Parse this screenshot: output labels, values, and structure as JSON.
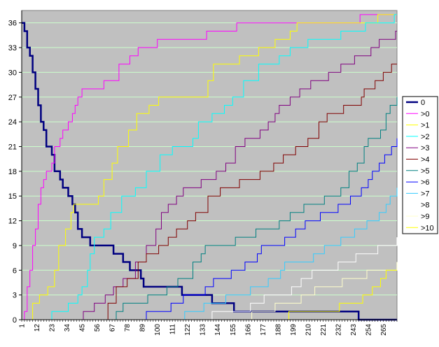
{
  "chart_data": {
    "type": "line",
    "title": "",
    "xlabel": "",
    "ylabel": "",
    "xlim": [
      1,
      275
    ],
    "ylim": [
      0,
      37.5
    ],
    "y_ticks": [
      0,
      3,
      6,
      9,
      12,
      15,
      18,
      21,
      24,
      27,
      30,
      33,
      36
    ],
    "x_ticks": [
      1,
      12,
      23,
      34,
      45,
      56,
      67,
      78,
      89,
      100,
      111,
      122,
      133,
      144,
      155,
      166,
      177,
      188,
      199,
      210,
      221,
      232,
      243,
      254,
      265
    ],
    "grid": true,
    "legend_position": "right",
    "plot_background": "#c0c0c0",
    "gridline_color": "#ccffcc",
    "series": [
      {
        "name": "0",
        "color": "#000080",
        "width": 2.5,
        "points": [
          [
            1,
            36
          ],
          [
            3,
            35
          ],
          [
            5,
            33
          ],
          [
            7,
            32
          ],
          [
            9,
            30
          ],
          [
            11,
            28
          ],
          [
            13,
            26
          ],
          [
            15,
            24
          ],
          [
            17,
            23
          ],
          [
            19,
            21
          ],
          [
            23,
            20
          ],
          [
            25,
            18
          ],
          [
            29,
            17
          ],
          [
            31,
            16
          ],
          [
            35,
            15
          ],
          [
            38,
            14
          ],
          [
            40,
            13
          ],
          [
            42,
            11
          ],
          [
            45,
            10
          ],
          [
            51,
            9
          ],
          [
            68,
            8
          ],
          [
            75,
            7
          ],
          [
            80,
            6
          ],
          [
            88,
            5
          ],
          [
            90,
            4
          ],
          [
            118,
            3
          ],
          [
            140,
            2
          ],
          [
            156,
            1
          ],
          [
            247,
            0
          ],
          [
            275,
            0
          ]
        ]
      },
      {
        "name": ">0",
        "color": "#ff00ff",
        "width": 1,
        "points": [
          [
            1,
            0
          ],
          [
            3,
            1
          ],
          [
            5,
            4
          ],
          [
            7,
            6
          ],
          [
            9,
            9
          ],
          [
            11,
            11
          ],
          [
            13,
            14
          ],
          [
            15,
            16
          ],
          [
            17,
            17
          ],
          [
            19,
            18
          ],
          [
            23,
            19
          ],
          [
            25,
            21
          ],
          [
            29,
            22
          ],
          [
            31,
            23
          ],
          [
            35,
            24
          ],
          [
            38,
            25
          ],
          [
            40,
            26
          ],
          [
            42,
            27
          ],
          [
            45,
            28
          ],
          [
            61,
            29
          ],
          [
            72,
            31
          ],
          [
            80,
            32
          ],
          [
            86,
            33
          ],
          [
            100,
            34
          ],
          [
            136,
            35
          ],
          [
            158,
            36
          ],
          [
            248,
            37
          ],
          [
            275,
            37
          ]
        ]
      },
      {
        "name": ">1",
        "color": "#ffff00",
        "width": 1,
        "points": [
          [
            1,
            0
          ],
          [
            9,
            2
          ],
          [
            14,
            3
          ],
          [
            20,
            4
          ],
          [
            25,
            6
          ],
          [
            28,
            9
          ],
          [
            33,
            11
          ],
          [
            37,
            13
          ],
          [
            39,
            14
          ],
          [
            57,
            15
          ],
          [
            61,
            17
          ],
          [
            67,
            19
          ],
          [
            71,
            21
          ],
          [
            79,
            23
          ],
          [
            85,
            25
          ],
          [
            94,
            26
          ],
          [
            101,
            27
          ],
          [
            137,
            29
          ],
          [
            141,
            31
          ],
          [
            160,
            32
          ],
          [
            174,
            33
          ],
          [
            186,
            34
          ],
          [
            197,
            35
          ],
          [
            202,
            36
          ],
          [
            261,
            37
          ],
          [
            275,
            37
          ]
        ]
      },
      {
        "name": ">2",
        "color": "#00ffff",
        "width": 1,
        "points": [
          [
            1,
            0
          ],
          [
            23,
            1
          ],
          [
            35,
            2
          ],
          [
            42,
            3
          ],
          [
            45,
            4
          ],
          [
            49,
            6
          ],
          [
            51,
            8
          ],
          [
            54,
            10
          ],
          [
            61,
            11
          ],
          [
            66,
            13
          ],
          [
            74,
            15
          ],
          [
            84,
            16
          ],
          [
            92,
            18
          ],
          [
            102,
            20
          ],
          [
            111,
            21
          ],
          [
            126,
            22
          ],
          [
            130,
            24
          ],
          [
            140,
            25
          ],
          [
            149,
            26
          ],
          [
            155,
            27
          ],
          [
            163,
            29
          ],
          [
            174,
            31
          ],
          [
            189,
            32
          ],
          [
            197,
            33
          ],
          [
            210,
            34
          ],
          [
            234,
            35
          ],
          [
            252,
            36
          ],
          [
            273,
            37
          ],
          [
            275,
            37
          ]
        ]
      },
      {
        "name": ">3",
        "color": "#800080",
        "width": 1,
        "points": [
          [
            1,
            0
          ],
          [
            46,
            1
          ],
          [
            54,
            2
          ],
          [
            62,
            3
          ],
          [
            68,
            4
          ],
          [
            75,
            5
          ],
          [
            84,
            7
          ],
          [
            92,
            9
          ],
          [
            99,
            11
          ],
          [
            103,
            13
          ],
          [
            108,
            14
          ],
          [
            114,
            15
          ],
          [
            119,
            16
          ],
          [
            132,
            17
          ],
          [
            143,
            18
          ],
          [
            150,
            19
          ],
          [
            157,
            21
          ],
          [
            164,
            22
          ],
          [
            175,
            23
          ],
          [
            181,
            24
          ],
          [
            186,
            25
          ],
          [
            189,
            26
          ],
          [
            197,
            27
          ],
          [
            204,
            28
          ],
          [
            212,
            29
          ],
          [
            225,
            30
          ],
          [
            234,
            31
          ],
          [
            244,
            32
          ],
          [
            256,
            33
          ],
          [
            262,
            34
          ],
          [
            274,
            35
          ],
          [
            275,
            35
          ]
        ]
      },
      {
        "name": ">4",
        "color": "#800000",
        "width": 1,
        "points": [
          [
            1,
            0
          ],
          [
            64,
            2
          ],
          [
            70,
            4
          ],
          [
            78,
            5
          ],
          [
            86,
            7
          ],
          [
            92,
            8
          ],
          [
            101,
            9
          ],
          [
            108,
            10
          ],
          [
            114,
            11
          ],
          [
            122,
            12
          ],
          [
            128,
            13
          ],
          [
            137,
            15
          ],
          [
            146,
            16
          ],
          [
            160,
            17
          ],
          [
            175,
            18
          ],
          [
            185,
            19
          ],
          [
            192,
            20
          ],
          [
            201,
            21
          ],
          [
            210,
            22
          ],
          [
            218,
            24
          ],
          [
            224,
            25
          ],
          [
            236,
            26
          ],
          [
            249,
            27
          ],
          [
            251,
            28
          ],
          [
            259,
            29
          ],
          [
            265,
            30
          ],
          [
            271,
            31
          ],
          [
            275,
            31
          ]
        ]
      },
      {
        "name": ">5",
        "color": "#008080",
        "width": 1,
        "points": [
          [
            1,
            0
          ],
          [
            70,
            1
          ],
          [
            75,
            2
          ],
          [
            93,
            3
          ],
          [
            107,
            4
          ],
          [
            115,
            5
          ],
          [
            126,
            7
          ],
          [
            132,
            8
          ],
          [
            135,
            9
          ],
          [
            157,
            10
          ],
          [
            172,
            11
          ],
          [
            189,
            12
          ],
          [
            197,
            13
          ],
          [
            207,
            14
          ],
          [
            222,
            15
          ],
          [
            234,
            16
          ],
          [
            240,
            18
          ],
          [
            246,
            19
          ],
          [
            251,
            21
          ],
          [
            254,
            22
          ],
          [
            263,
            23
          ],
          [
            267,
            25
          ],
          [
            270,
            26
          ],
          [
            275,
            27
          ]
        ]
      },
      {
        "name": ">6",
        "color": "#0000ff",
        "width": 1,
        "points": [
          [
            1,
            0
          ],
          [
            92,
            1
          ],
          [
            110,
            2
          ],
          [
            119,
            3
          ],
          [
            135,
            4
          ],
          [
            141,
            5
          ],
          [
            154,
            6
          ],
          [
            164,
            7
          ],
          [
            173,
            8
          ],
          [
            176,
            9
          ],
          [
            193,
            10
          ],
          [
            201,
            11
          ],
          [
            208,
            12
          ],
          [
            219,
            13
          ],
          [
            232,
            14
          ],
          [
            241,
            15
          ],
          [
            249,
            16
          ],
          [
            254,
            17
          ],
          [
            257,
            18
          ],
          [
            262,
            19
          ],
          [
            266,
            20
          ],
          [
            271,
            21
          ],
          [
            275,
            22
          ]
        ]
      },
      {
        "name": ">7",
        "color": "#33ccff",
        "width": 1,
        "points": [
          [
            1,
            0
          ],
          [
            120,
            1
          ],
          [
            134,
            2
          ],
          [
            150,
            3
          ],
          [
            168,
            4
          ],
          [
            181,
            5
          ],
          [
            190,
            6
          ],
          [
            193,
            7
          ],
          [
            214,
            8
          ],
          [
            222,
            9
          ],
          [
            234,
            10
          ],
          [
            244,
            11
          ],
          [
            253,
            12
          ],
          [
            262,
            13
          ],
          [
            267,
            14
          ],
          [
            270,
            15
          ],
          [
            275,
            16
          ]
        ]
      },
      {
        "name": ">8",
        "color": "#ffffff",
        "width": 1,
        "points": [
          [
            1,
            0
          ],
          [
            140,
            1
          ],
          [
            168,
            2
          ],
          [
            178,
            3
          ],
          [
            198,
            4
          ],
          [
            205,
            5
          ],
          [
            213,
            6
          ],
          [
            232,
            7
          ],
          [
            245,
            8
          ],
          [
            261,
            9
          ],
          [
            275,
            10
          ]
        ]
      },
      {
        "name": ">9",
        "color": "#ffffcc",
        "width": 1,
        "points": [
          [
            1,
            0
          ],
          [
            169,
            1
          ],
          [
            186,
            2
          ],
          [
            205,
            3
          ],
          [
            215,
            4
          ],
          [
            235,
            5
          ],
          [
            253,
            6
          ],
          [
            275,
            7
          ]
        ]
      },
      {
        "name": ">10",
        "color": "#ffff00",
        "width": 1,
        "points": [
          [
            1,
            0
          ],
          [
            196,
            1
          ],
          [
            233,
            2
          ],
          [
            250,
            3
          ],
          [
            257,
            4
          ],
          [
            263,
            5
          ],
          [
            267,
            6
          ],
          [
            275,
            6
          ]
        ]
      }
    ]
  }
}
